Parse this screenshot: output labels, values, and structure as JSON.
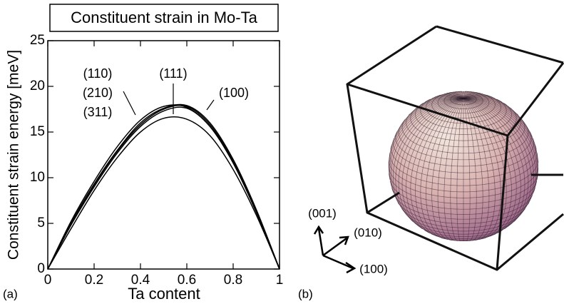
{
  "chart_data": {
    "type": "line",
    "title": "Constituent strain in Mo-Ta",
    "x_label": "Ta content",
    "y_label": "Constituent strain energy [meV]",
    "x": [
      0,
      0.1,
      0.2,
      0.3,
      0.4,
      0.5,
      0.6,
      0.7,
      0.8,
      0.9,
      1
    ],
    "series": [
      {
        "name": "(110)",
        "color": "#000000",
        "values": [
          0,
          5.0,
          9.3,
          13.0,
          16.0,
          17.6,
          17.9,
          16.0,
          12.0,
          6.5,
          0
        ]
      },
      {
        "name": "(210)",
        "color": "#000000",
        "values": [
          0,
          4.9,
          9.2,
          12.9,
          15.8,
          17.5,
          17.8,
          15.8,
          11.8,
          6.4,
          0
        ]
      },
      {
        "name": "(311)",
        "color": "#000000",
        "values": [
          0,
          4.8,
          9.0,
          12.7,
          15.6,
          17.3,
          17.6,
          15.6,
          11.7,
          6.3,
          0
        ]
      },
      {
        "name": "(111)",
        "color": "#000000",
        "values": [
          0,
          5.2,
          9.6,
          13.4,
          16.3,
          17.8,
          17.7,
          15.6,
          11.6,
          6.2,
          0
        ]
      },
      {
        "name": "(100)",
        "color": "#000000",
        "values": [
          0,
          4.4,
          8.6,
          12.2,
          15.0,
          16.5,
          16.4,
          14.6,
          10.9,
          5.9,
          0
        ]
      }
    ],
    "xlim": [
      0,
      1
    ],
    "xticks": [
      0,
      0.2,
      0.4,
      0.6,
      0.8,
      1
    ],
    "ylim": [
      0,
      25
    ],
    "yticks": [
      0,
      5,
      10,
      15,
      20,
      25
    ],
    "grid": false
  },
  "panel_labels": [
    "(a)",
    "(b)"
  ],
  "panel_b": {
    "axes": [
      "(001)",
      "(010)",
      "(100)"
    ]
  }
}
